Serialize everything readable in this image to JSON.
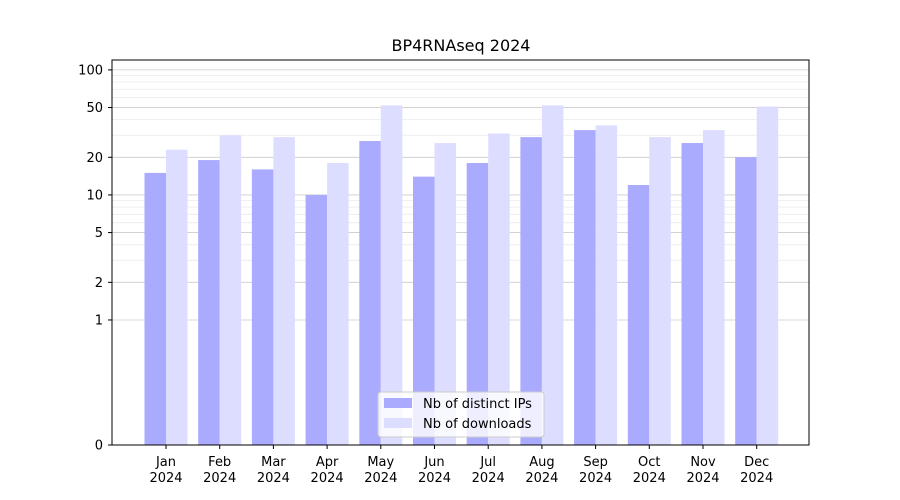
{
  "chart_data": {
    "type": "bar",
    "title": "BP4RNAseq 2024",
    "xlabel": "",
    "ylabel": "",
    "yscale": "symlog",
    "ylim": [
      0,
      120
    ],
    "yticks": [
      0,
      1,
      2,
      5,
      10,
      20,
      50,
      100
    ],
    "grid": true,
    "legend_position": "bottom-center",
    "categories": [
      [
        "Jan",
        "2024"
      ],
      [
        "Feb",
        "2024"
      ],
      [
        "Mar",
        "2024"
      ],
      [
        "Apr",
        "2024"
      ],
      [
        "May",
        "2024"
      ],
      [
        "Jun",
        "2024"
      ],
      [
        "Jul",
        "2024"
      ],
      [
        "Aug",
        "2024"
      ],
      [
        "Sep",
        "2024"
      ],
      [
        "Oct",
        "2024"
      ],
      [
        "Nov",
        "2024"
      ],
      [
        "Dec",
        "2024"
      ]
    ],
    "series": [
      {
        "name": "Nb of distinct IPs",
        "color": "#aaaaff",
        "values": [
          15,
          19,
          16,
          10,
          27,
          14,
          18,
          29,
          33,
          12,
          26,
          20
        ]
      },
      {
        "name": "Nb of downloads",
        "color": "#ddddff",
        "values": [
          23,
          30,
          29,
          18,
          52,
          26,
          31,
          52,
          36,
          29,
          33,
          51
        ]
      }
    ]
  }
}
